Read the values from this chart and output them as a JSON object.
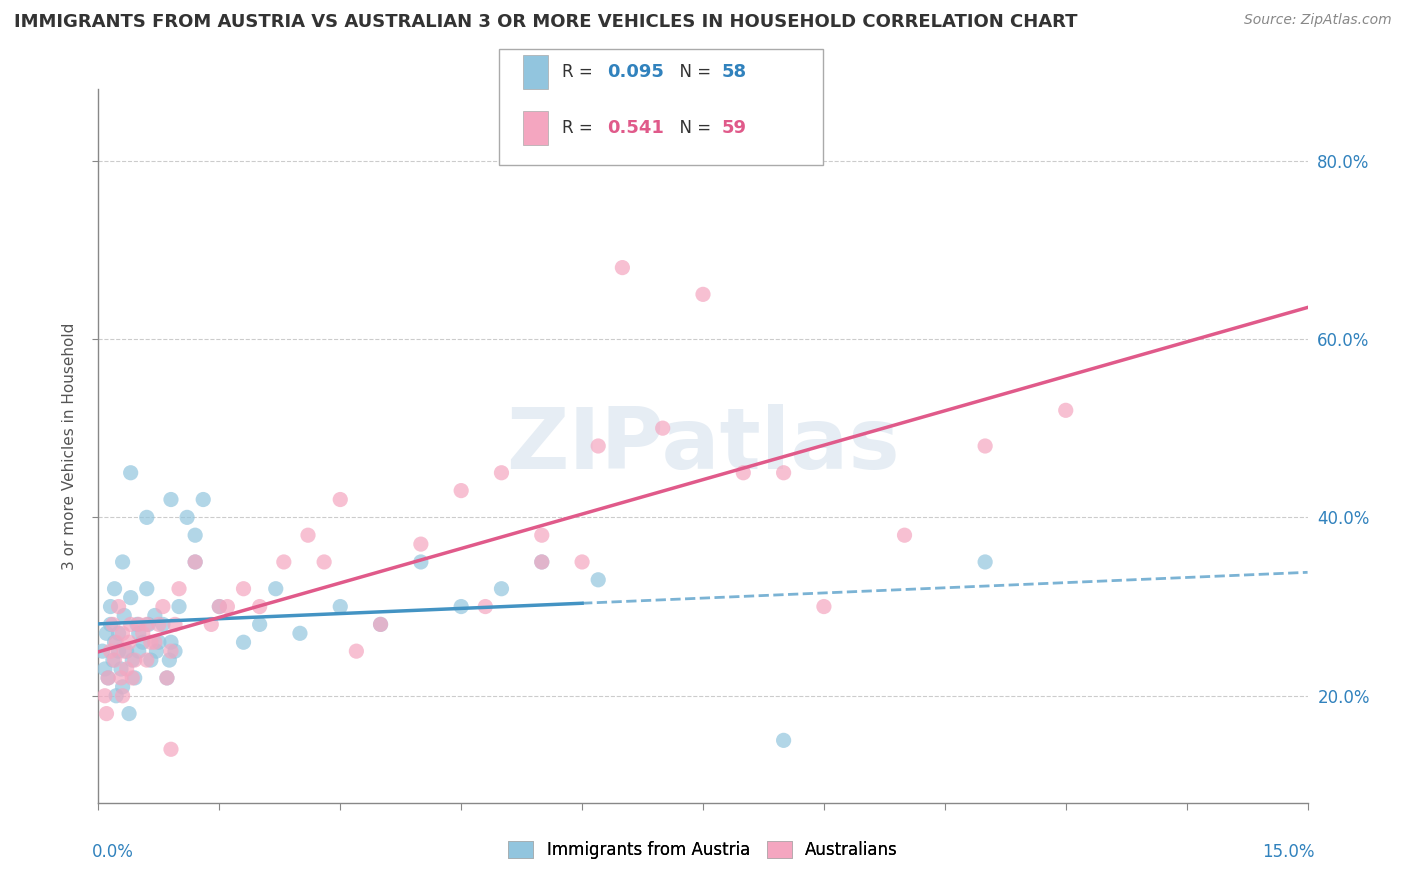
{
  "title": "IMMIGRANTS FROM AUSTRIA VS AUSTRALIAN 3 OR MORE VEHICLES IN HOUSEHOLD CORRELATION CHART",
  "source": "Source: ZipAtlas.com",
  "ylabel_label": "3 or more Vehicles in Household",
  "watermark": "ZIPatlas",
  "legend1_label": "Immigrants from Austria",
  "legend2_label": "Australians",
  "R1": 0.095,
  "N1": 58,
  "R2": 0.541,
  "N2": 59,
  "color_blue": "#92C5DE",
  "color_pink": "#F4A6C0",
  "color_blue_line": "#4393C3",
  "color_pink_line": "#E05A8A",
  "color_blue_text": "#3182BD",
  "color_pink_text": "#E05A8A",
  "xmin": 0.0,
  "xmax": 15.0,
  "ymin": 8.0,
  "ymax": 88.0,
  "blue_scatter_x": [
    0.05,
    0.08,
    0.1,
    0.12,
    0.15,
    0.15,
    0.18,
    0.2,
    0.2,
    0.22,
    0.25,
    0.25,
    0.28,
    0.3,
    0.3,
    0.32,
    0.35,
    0.38,
    0.4,
    0.42,
    0.45,
    0.48,
    0.5,
    0.5,
    0.55,
    0.6,
    0.62,
    0.65,
    0.7,
    0.72,
    0.75,
    0.8,
    0.85,
    0.88,
    0.9,
    0.95,
    1.0,
    1.1,
    1.2,
    1.3,
    1.5,
    1.8,
    2.0,
    2.5,
    3.0,
    3.5,
    4.5,
    5.0,
    5.5,
    6.2,
    8.5,
    11.0,
    0.4,
    0.6,
    0.9,
    1.2,
    2.2,
    4.0
  ],
  "blue_scatter_y": [
    25,
    23,
    27,
    22,
    28,
    30,
    24,
    26,
    32,
    20,
    27,
    25,
    23,
    35,
    21,
    29,
    25,
    18,
    31,
    24,
    22,
    28,
    27,
    25,
    26,
    32,
    28,
    24,
    29,
    25,
    26,
    28,
    22,
    24,
    26,
    25,
    30,
    40,
    35,
    42,
    30,
    26,
    28,
    27,
    30,
    28,
    30,
    32,
    35,
    33,
    15,
    35,
    45,
    40,
    42,
    38,
    32,
    35
  ],
  "pink_scatter_x": [
    0.08,
    0.1,
    0.12,
    0.15,
    0.18,
    0.2,
    0.22,
    0.25,
    0.28,
    0.3,
    0.32,
    0.35,
    0.38,
    0.4,
    0.42,
    0.45,
    0.5,
    0.55,
    0.6,
    0.65,
    0.7,
    0.75,
    0.8,
    0.85,
    0.9,
    0.95,
    1.0,
    1.2,
    1.4,
    1.6,
    1.8,
    2.0,
    2.3,
    2.6,
    3.0,
    3.5,
    4.0,
    4.5,
    5.0,
    5.5,
    6.0,
    6.5,
    7.0,
    8.0,
    9.0,
    10.0,
    11.0,
    12.0,
    0.3,
    0.6,
    0.9,
    1.5,
    2.8,
    4.8,
    6.2,
    8.5,
    5.5,
    3.2,
    7.5
  ],
  "pink_scatter_y": [
    20,
    18,
    22,
    25,
    28,
    24,
    26,
    30,
    22,
    27,
    25,
    23,
    26,
    28,
    22,
    24,
    28,
    27,
    24,
    26,
    26,
    28,
    30,
    22,
    25,
    28,
    32,
    35,
    28,
    30,
    32,
    30,
    35,
    38,
    42,
    28,
    37,
    43,
    45,
    38,
    35,
    68,
    50,
    45,
    30,
    38,
    48,
    52,
    20,
    28,
    14,
    30,
    35,
    30,
    48,
    45,
    35,
    25,
    65
  ],
  "blue_solid_end_x": 6.0,
  "grid_color": "#CCCCCC",
  "background_color": "#FFFFFF"
}
